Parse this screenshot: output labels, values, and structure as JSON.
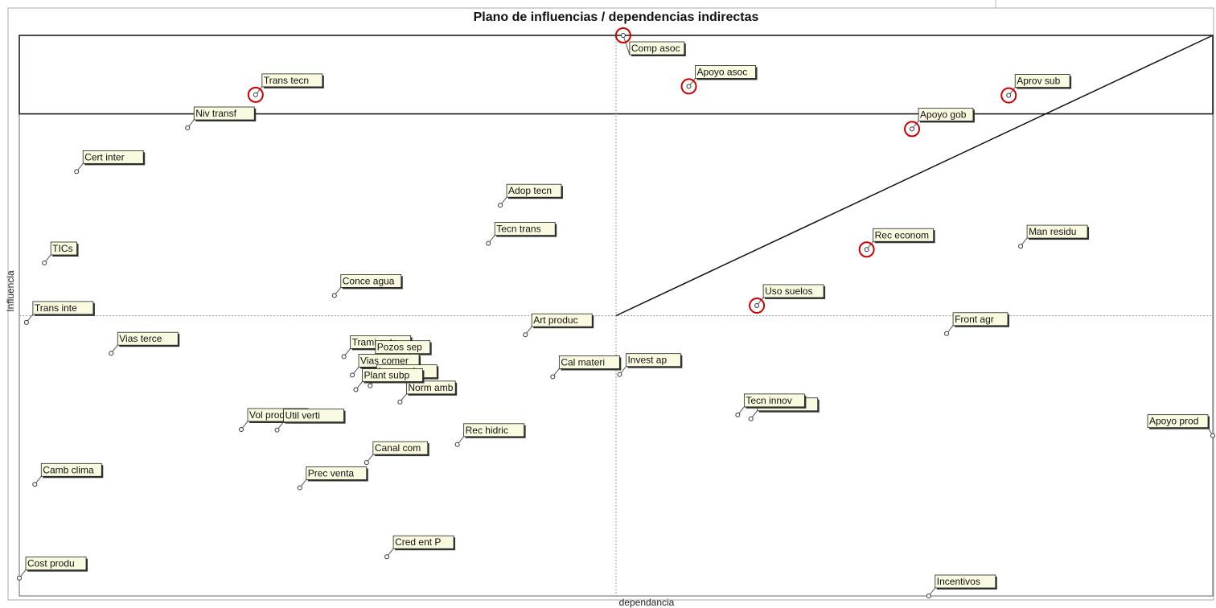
{
  "chart_data": {
    "type": "scatter",
    "title": "Plano de influencias / dependencias indirectas",
    "xlabel": "dependancia",
    "ylabel": "Influencia",
    "xlim": [
      0,
      100
    ],
    "ylim": [
      0,
      100
    ],
    "grid": false,
    "quadrant_divider": {
      "x": 50,
      "y": 50
    },
    "diagonal_line": [
      [
        50,
        50
      ],
      [
        100,
        100
      ]
    ],
    "highlight_box": {
      "x": [
        0,
        100
      ],
      "y": [
        86,
        100
      ]
    },
    "colors": {
      "label_bg": "#fafae0",
      "highlight_ring": "#cc0000",
      "point": "#333333"
    },
    "points": [
      {
        "label": "Comp asoc",
        "x": 50.6,
        "y": 100,
        "highlight": true
      },
      {
        "label": "Trans tecn",
        "x": 19.8,
        "y": 89.4,
        "highlight": true
      },
      {
        "label": "Niv transf",
        "x": 14.1,
        "y": 83.5,
        "highlight": false
      },
      {
        "label": "Apoyo asoc",
        "x": 56.1,
        "y": 90.9,
        "highlight": true
      },
      {
        "label": "Aprov sub",
        "x": 82.9,
        "y": 89.3,
        "highlight": true
      },
      {
        "label": "Apoyo gob",
        "x": 74.8,
        "y": 83.3,
        "highlight": true
      },
      {
        "label": "Cert inter",
        "x": 4.8,
        "y": 75.7,
        "highlight": false
      },
      {
        "label": "Adop tecn",
        "x": 40.3,
        "y": 69.7,
        "highlight": false
      },
      {
        "label": "Tecn trans",
        "x": 39.3,
        "y": 62.9,
        "highlight": false
      },
      {
        "label": "Rec econom",
        "x": 71.0,
        "y": 61.8,
        "highlight": true
      },
      {
        "label": "Man residu",
        "x": 83.9,
        "y": 62.4,
        "highlight": false
      },
      {
        "label": "TICs",
        "x": 2.1,
        "y": 59.4,
        "highlight": false
      },
      {
        "label": "Conce agua",
        "x": 26.4,
        "y": 53.6,
        "highlight": false
      },
      {
        "label": "Uso suelos",
        "x": 61.8,
        "y": 51.8,
        "highlight": true
      },
      {
        "label": "Trans inte",
        "x": 0.6,
        "y": 48.8,
        "highlight": false
      },
      {
        "label": "Art produc",
        "x": 42.4,
        "y": 46.6,
        "highlight": false
      },
      {
        "label": "Front agr",
        "x": 77.7,
        "y": 46.8,
        "highlight": false
      },
      {
        "label": "Vias terce",
        "x": 7.7,
        "y": 43.3,
        "highlight": false
      },
      {
        "label": "Trami auto",
        "x": 27.2,
        "y": 42.7,
        "highlight": false
      },
      {
        "label": "Pozos sep",
        "x": 29.3,
        "y": 41.8,
        "highlight": false
      },
      {
        "label": "Vias comer",
        "x": 27.9,
        "y": 39.4,
        "highlight": false
      },
      {
        "label": "Invest ap",
        "x": 50.3,
        "y": 39.5,
        "highlight": false
      },
      {
        "label": "Inv agroin",
        "x": 29.4,
        "y": 37.5,
        "highlight": false
      },
      {
        "label": "Norm amb",
        "x": 31.9,
        "y": 34.6,
        "highlight": false
      },
      {
        "label": "Plant subp",
        "x": 28.2,
        "y": 36.8,
        "highlight": false
      },
      {
        "label": "Cal materi",
        "x": 44.7,
        "y": 39.1,
        "highlight": false
      },
      {
        "label": "Ten tierra",
        "x": 61.3,
        "y": 31.6,
        "highlight": false
      },
      {
        "label": "Tecn innov",
        "x": 60.2,
        "y": 32.3,
        "highlight": false
      },
      {
        "label": "Rec hidric",
        "x": 36.7,
        "y": 27.0,
        "highlight": false
      },
      {
        "label": "Vol produc",
        "x": 18.6,
        "y": 29.7,
        "highlight": false
      },
      {
        "label": "Util verti",
        "x": 21.6,
        "y": 29.6,
        "highlight": false
      },
      {
        "label": "Canal com",
        "x": 29.1,
        "y": 23.8,
        "highlight": false
      },
      {
        "label": "Camb clima",
        "x": 1.3,
        "y": 19.9,
        "highlight": false
      },
      {
        "label": "Prec venta",
        "x": 23.5,
        "y": 19.3,
        "highlight": false
      },
      {
        "label": "Apoyo prod",
        "x": 100,
        "y": 28.6,
        "highlight": false
      },
      {
        "label": "Cred ent P",
        "x": 30.8,
        "y": 7.0,
        "highlight": false
      },
      {
        "label": "Cost produ",
        "x": 0,
        "y": 3.2,
        "highlight": false
      },
      {
        "label": "Incentivos",
        "x": 76.2,
        "y": 0,
        "highlight": false
      }
    ]
  }
}
